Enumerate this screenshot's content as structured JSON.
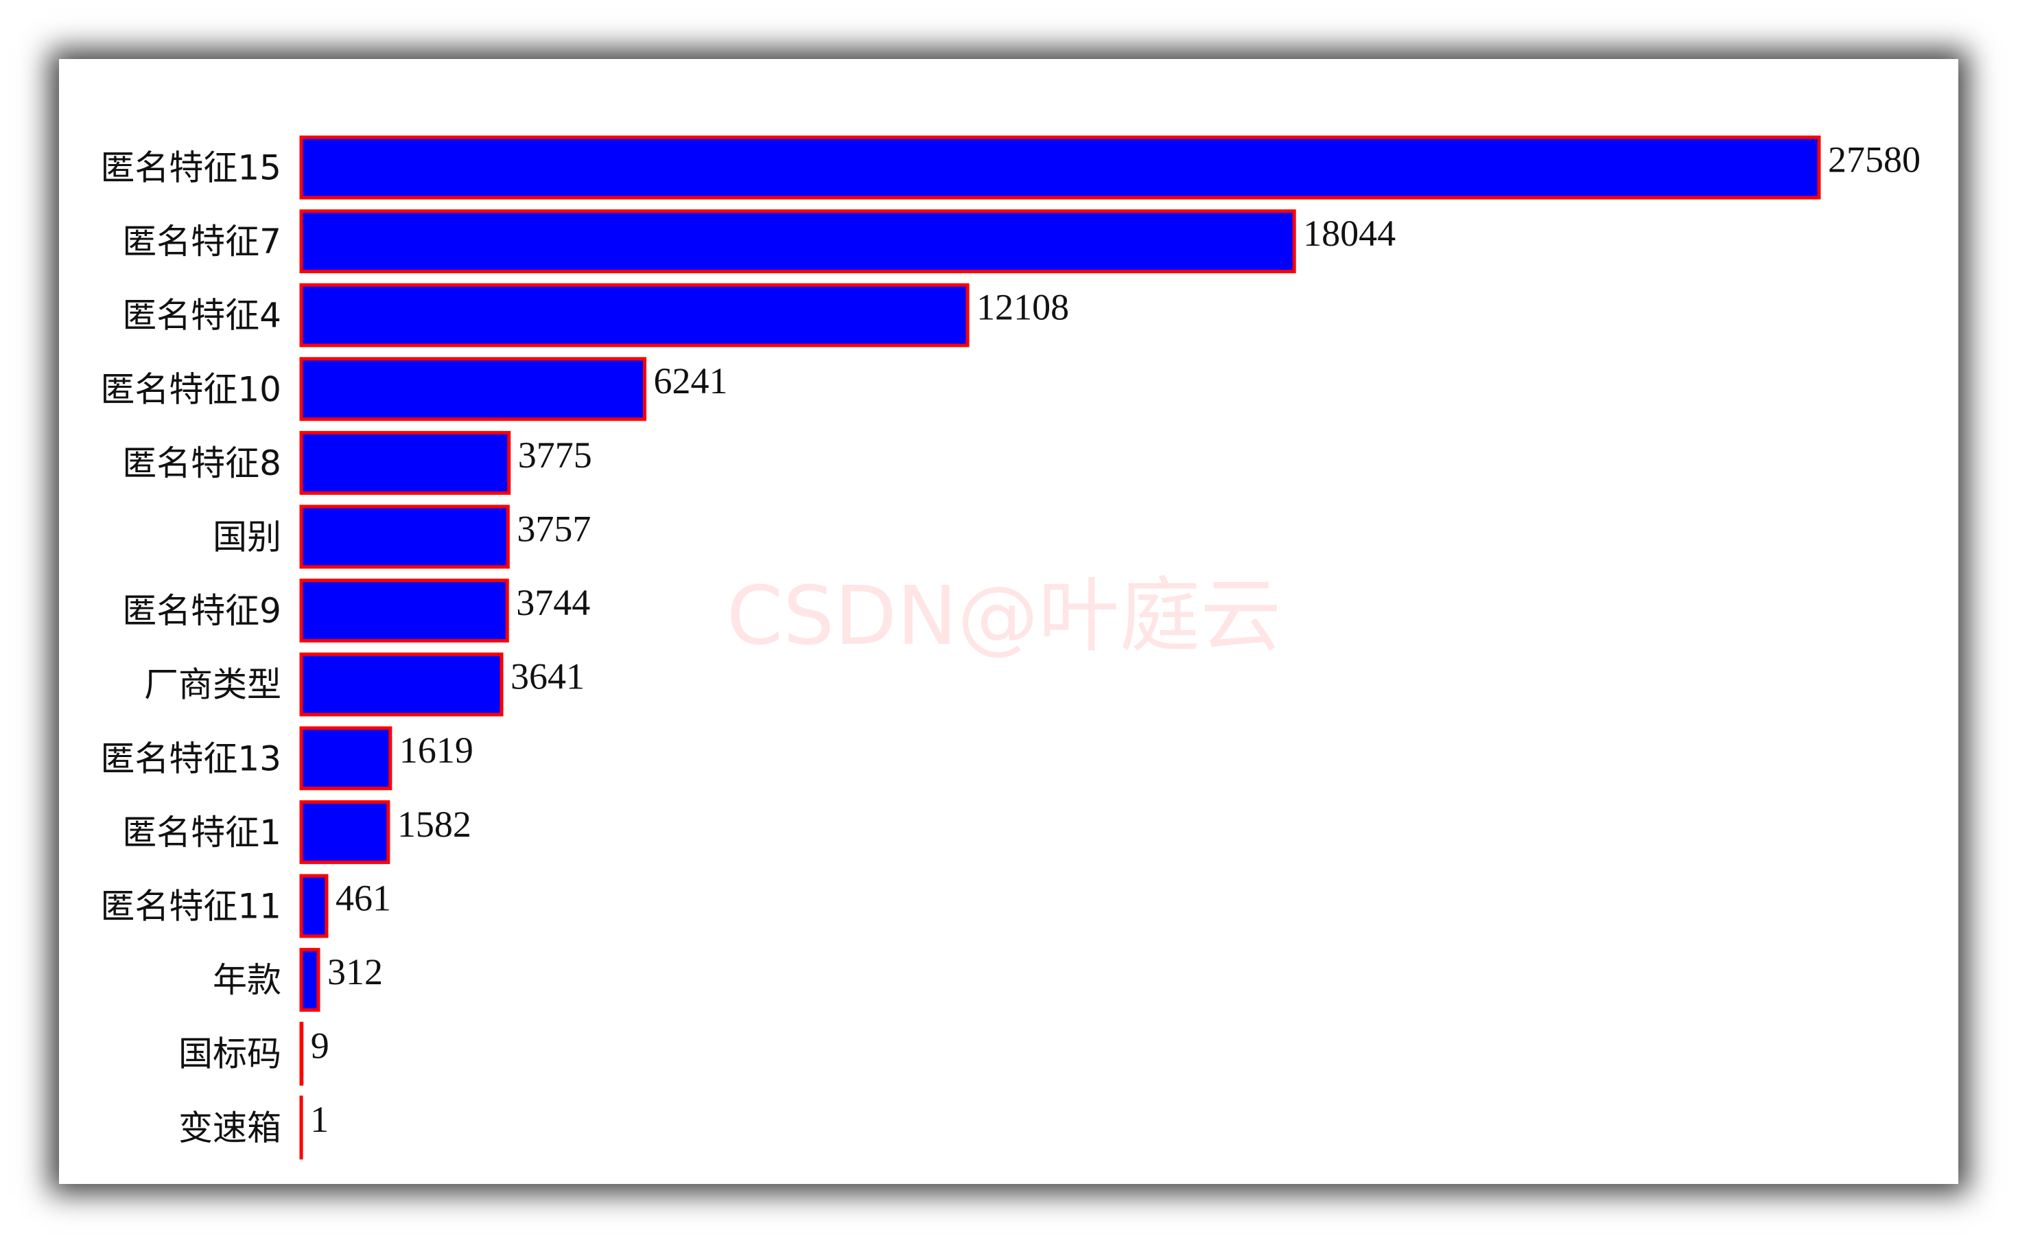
{
  "chart_data": {
    "type": "bar",
    "orientation": "horizontal",
    "categories": [
      "匿名特征15",
      "匿名特征7",
      "匿名特征4",
      "匿名特征10",
      "匿名特征8",
      "国别",
      "匿名特征9",
      "厂商类型",
      "匿名特征13",
      "匿名特征1",
      "匿名特征11",
      "年款",
      "国标码",
      "变速箱"
    ],
    "values": [
      27580,
      18044,
      12108,
      6241,
      3775,
      3757,
      3744,
      3641,
      1619,
      1582,
      461,
      312,
      9,
      1
    ],
    "color": "#0000ff",
    "edge_color": "#ff0000",
    "watermark": "CSDN@叶庭云"
  }
}
